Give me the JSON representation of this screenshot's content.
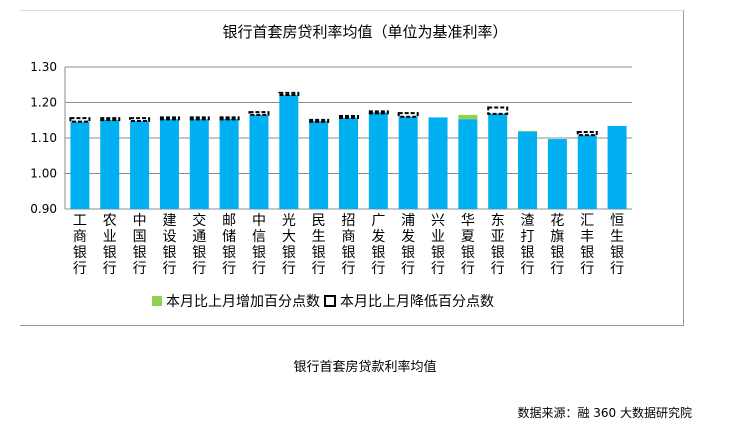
{
  "chart_data": {
    "type": "bar",
    "title": "银行首套房贷利率均值（单位为基准利率）",
    "categories": [
      "工商银行",
      "农业银行",
      "中国银行",
      "建设银行",
      "交通银行",
      "邮储银行",
      "中信银行",
      "光大银行",
      "民生银行",
      "招商银行",
      "广发银行",
      "浦发银行",
      "兴业银行",
      "华夏银行",
      "东亚银行",
      "渣打银行",
      "花旗银行",
      "汇丰银行",
      "恒生银行"
    ],
    "values": [
      1.146,
      1.151,
      1.148,
      1.153,
      1.153,
      1.154,
      1.165,
      1.221,
      1.148,
      1.157,
      1.172,
      1.16,
      1.158,
      1.153,
      1.168,
      1.118,
      1.097,
      1.108,
      1.134
    ],
    "series": [
      {
        "name": "本月比上月增加百分点数",
        "values": [
          0,
          0,
          0,
          0,
          0,
          0,
          0,
          0,
          0,
          0,
          0,
          0,
          0,
          0.012,
          0,
          0.002,
          0,
          0,
          0
        ]
      },
      {
        "name": "本月比上月降低百分点数",
        "values": [
          0.01,
          0.005,
          0.008,
          0.005,
          0.005,
          0.004,
          0.008,
          0.006,
          0.003,
          0.005,
          0.003,
          0.01,
          0,
          0,
          0.018,
          0,
          0,
          0.009,
          0
        ]
      }
    ],
    "ylim": [
      0.9,
      1.3
    ],
    "yticks": [
      "0.90",
      "1.00",
      "1.10",
      "1.20",
      "1.30"
    ],
    "grid": true,
    "legend": "bottom",
    "colors": {
      "base": "#00b0f0",
      "increase": "#92d050",
      "decrease": "#000000"
    }
  },
  "caption": "银行首套房贷款利率均值",
  "source": "数据来源：融 360 大数据研究院"
}
